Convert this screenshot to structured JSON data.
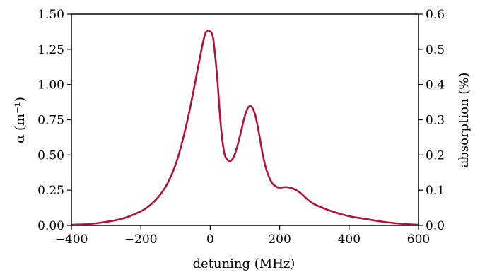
{
  "chart_data": {
    "type": "line",
    "title": "",
    "xlabel": "detuning (MHz)",
    "ylabel_left": "α (m⁻¹)",
    "ylabel_right": "absorption (%)",
    "xlim": [
      -400,
      600
    ],
    "ylim_left": [
      0,
      1.5
    ],
    "ylim_right": [
      0,
      0.6
    ],
    "grid": false,
    "legend": "none",
    "x_ticks": [
      "−400",
      "−200",
      "0",
      "200",
      "400",
      "600"
    ],
    "x_tick_values": [
      -400,
      -200,
      0,
      200,
      400,
      600
    ],
    "y_left_ticks": [
      "0.00",
      "0.25",
      "0.50",
      "0.75",
      "1.00",
      "1.25",
      "1.50"
    ],
    "y_left_tick_values": [
      0,
      0.25,
      0.5,
      0.75,
      1.0,
      1.25,
      1.5
    ],
    "y_right_ticks": [
      "0.0",
      "0.1",
      "0.2",
      "0.3",
      "0.4",
      "0.5",
      "0.6"
    ],
    "y_right_tick_values": [
      0,
      0.1,
      0.2,
      0.3,
      0.4,
      0.5,
      0.6
    ],
    "series": [
      {
        "color": "#b5103c",
        "x": [
          -400,
          -350,
          -300,
          -250,
          -200,
          -175,
          -150,
          -125,
          -100,
          -80,
          -60,
          -40,
          -20,
          -10,
          0,
          5,
          10,
          20,
          30,
          40,
          50,
          60,
          70,
          80,
          90,
          100,
          110,
          120,
          130,
          140,
          150,
          160,
          170,
          180,
          190,
          200,
          220,
          240,
          260,
          280,
          300,
          350,
          400,
          450,
          500,
          550,
          600
        ],
        "y": [
          0.005,
          0.01,
          0.025,
          0.05,
          0.1,
          0.14,
          0.2,
          0.29,
          0.43,
          0.6,
          0.81,
          1.06,
          1.31,
          1.38,
          1.375,
          1.36,
          1.3,
          1.05,
          0.72,
          0.52,
          0.465,
          0.46,
          0.5,
          0.58,
          0.68,
          0.78,
          0.84,
          0.84,
          0.78,
          0.66,
          0.52,
          0.41,
          0.34,
          0.295,
          0.275,
          0.268,
          0.272,
          0.26,
          0.23,
          0.185,
          0.15,
          0.1,
          0.065,
          0.045,
          0.025,
          0.012,
          0.005
        ]
      }
    ]
  }
}
